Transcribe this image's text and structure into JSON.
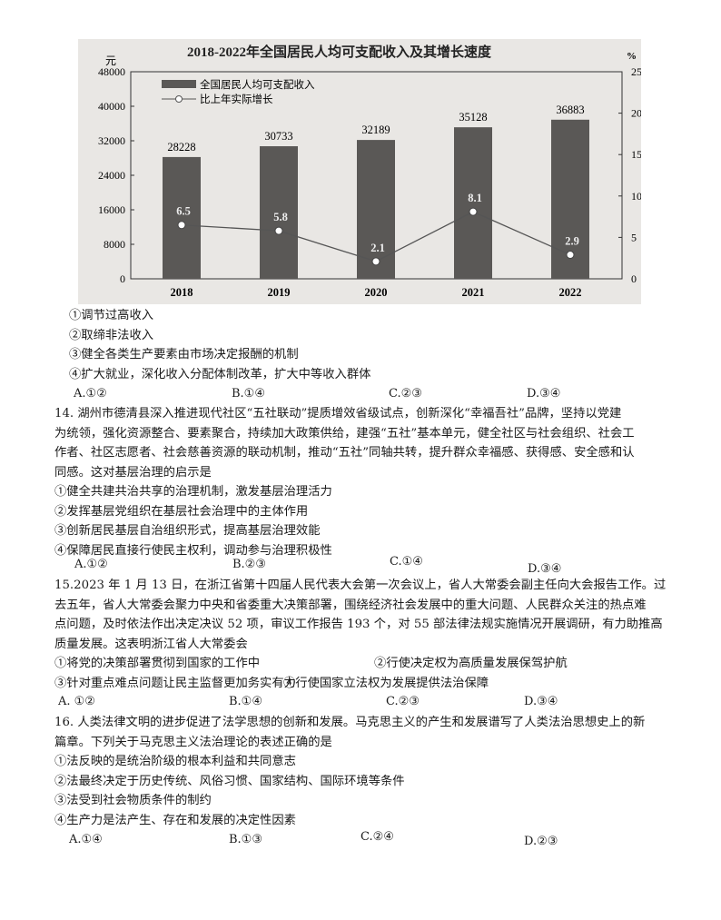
{
  "chart_data": {
    "type": "bar+line",
    "title": "2018-2022年全国居民人均可支配收入及其增长速度",
    "categories": [
      "2018",
      "2019",
      "2020",
      "2021",
      "2022"
    ],
    "series": [
      {
        "name": "全国居民人均可支配收入",
        "type": "bar",
        "axis": "left",
        "values": [
          28228,
          30733,
          32189,
          35128,
          36883
        ]
      },
      {
        "name": "比上年实际增长",
        "type": "line",
        "axis": "right",
        "values": [
          6.5,
          5.8,
          2.1,
          8.1,
          2.9
        ]
      }
    ],
    "left_axis": {
      "unit": "元",
      "ylim": [
        0,
        48000
      ],
      "ticks": [
        "0",
        "8000",
        "16000",
        "24000",
        "32000",
        "40000",
        "48000"
      ]
    },
    "right_axis": {
      "unit": "%",
      "ylim": [
        0,
        25
      ],
      "ticks": [
        "0",
        "5",
        "10",
        "15",
        "20",
        "25"
      ]
    },
    "legend": "top-left",
    "colors": {
      "bar": "#5a5856",
      "line": "#555555"
    }
  },
  "q13_items": [
    "①调节过高收入",
    "②取缔非法收入",
    "③健全各类生产要素由市场决定报酬的机制",
    "④扩大就业，深化收入分配体制改革，扩大中等收入群体"
  ],
  "q13_options": [
    "A.①②",
    "B.①④",
    "C.②③",
    "D.③④"
  ],
  "q14": {
    "lines": [
      "14. 湖州市德清县深入推进现代社区“五社联动”提质增效省级试点，创新深化“幸福吾社”品牌，坚持以党建",
      "为统领，强化资源整合、要素聚合，持续加大政策供给，建强“五社”基本单元，健全社区与社会组织、社会工",
      "作者、社区志愿者、社会慈善资源的联动机制，推动“五社”同轴共转，提升群众幸福感、获得感、安全感和认",
      "同感。这对基层治理的启示是"
    ],
    "items": [
      "①健全共建共治共享的治理机制，激发基层治理活力",
      "②发挥基层党组织在基层社会治理中的主体作用",
      "③创新居民基层自治组织形式，提高基层治理效能",
      "④保障居民直接行使民主权利，调动参与治理积极性"
    ],
    "options": [
      "A.①②",
      "B.②③",
      "C.①④",
      "D.③④"
    ]
  },
  "q15": {
    "lines": [
      "15.2023 年 1 月 13 日，在浙江省第十四届人民代表大会第一次会议上，省人大常委会副主任向大会报告工作。过",
      "去五年，省人大常委会聚力中央和省委重大决策部署，围绕经济社会发展中的重大问题、人民群众关注的热点难",
      "点问题，及时依法作出决定决议 52 项，审议工作报告 193 个，对 55 部法律法规实施情况开展调研，有力助推高",
      "质量发展。这表明浙江省人大常委会"
    ],
    "items": [
      "①将党的决策部署贯彻到国家的工作中",
      "②行使决定权为高质量发展保驾护航",
      "③针对重点难点问题让民主监督更加务实有力",
      "④行使国家立法权为发展提供法治保障"
    ],
    "options": [
      "A. ①②",
      "B.①④",
      "C.②③",
      "D.③④"
    ]
  },
  "q16": {
    "lines": [
      "16. 人类法律文明的进步促进了法学思想的创新和发展。马克思主义的产生和发展谱写了人类法治思想史上的新",
      "篇章。下列关于马克思主义法治理论的表述正确的是"
    ],
    "items": [
      "①法反映的是统治阶级的根本利益和共同意志",
      "②法最终决定于历史传统、风俗习惯、国家结构、国际环境等条件",
      "③法受到社会物质条件的制约",
      "④生产力是法产生、存在和发展的决定性因素"
    ],
    "options": [
      "A.①④",
      "B.①③",
      "C.②④",
      "D.②③"
    ]
  }
}
